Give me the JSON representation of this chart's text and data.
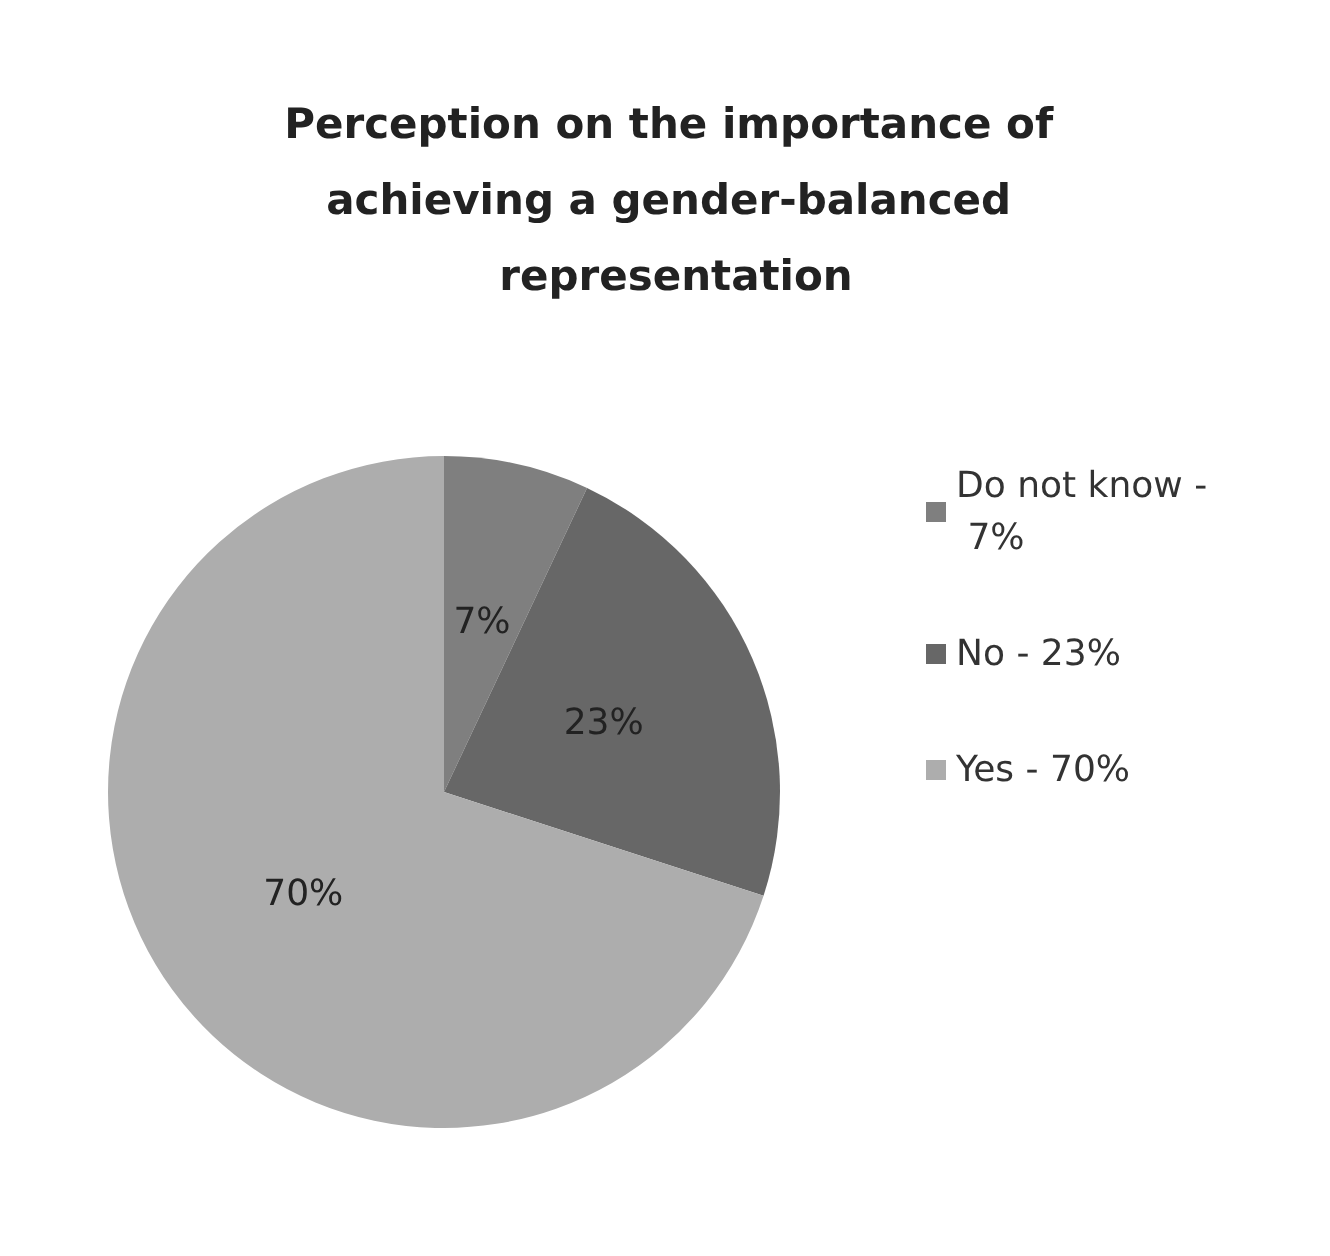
{
  "chart_data": {
    "type": "pie",
    "title": "Perception on the importance of achieving a gender-balanced representation",
    "categories": [
      "Do not know - 7%",
      "No - 23%",
      "Yes - 70%"
    ],
    "values": [
      7,
      23,
      70
    ],
    "colors": [
      "#7f7f7f",
      "#676767",
      "#adadad"
    ],
    "value_labels": [
      "7%",
      "23%",
      "70%"
    ],
    "legend": "right"
  }
}
